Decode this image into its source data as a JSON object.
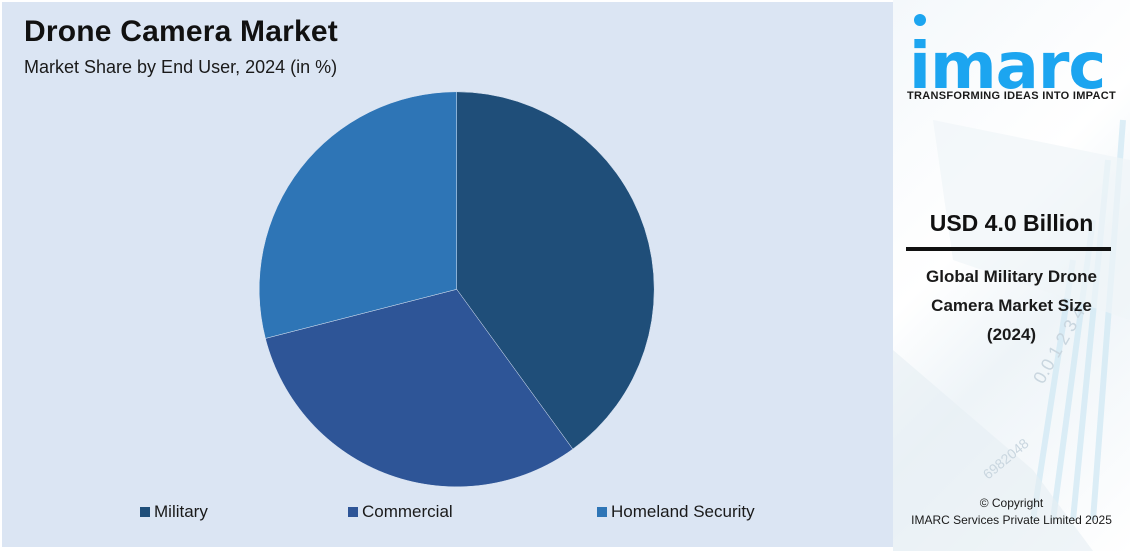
{
  "header": {
    "title": "Drone Camera Market",
    "subtitle": "Market Share by End User, 2024 (in %)"
  },
  "chart_data": {
    "type": "pie",
    "title": "Drone Camera Market",
    "subtitle": "Market Share by End User, 2024 (in %)",
    "categories": [
      "Military",
      "Commercial",
      "Homeland Security"
    ],
    "values": [
      40,
      31,
      29
    ],
    "colors": [
      "#1f4e79",
      "#2e5597",
      "#2e75b6"
    ],
    "start_angle_deg": 0,
    "direction": "clockwise",
    "legend_position": "bottom",
    "data_labels": false
  },
  "legend": {
    "items": [
      {
        "label": "Military",
        "color": "#1f4e79"
      },
      {
        "label": "Commercial",
        "color": "#2e5597"
      },
      {
        "label": "Homeland Security",
        "color": "#2e75b6"
      }
    ]
  },
  "brand": {
    "logo_text": "imarc",
    "tagline": "TRANSFORMING IDEAS INTO IMPACT",
    "logo_color": "#1ca5f0"
  },
  "highlight": {
    "value": "USD 4.0 Billion",
    "description_lines": [
      "Global Military Drone",
      "Camera Market Size",
      "(2024)"
    ]
  },
  "footer": {
    "copyright_line1": "© Copyright",
    "copyright_line2": "IMARC Services Private Limited 2025"
  }
}
